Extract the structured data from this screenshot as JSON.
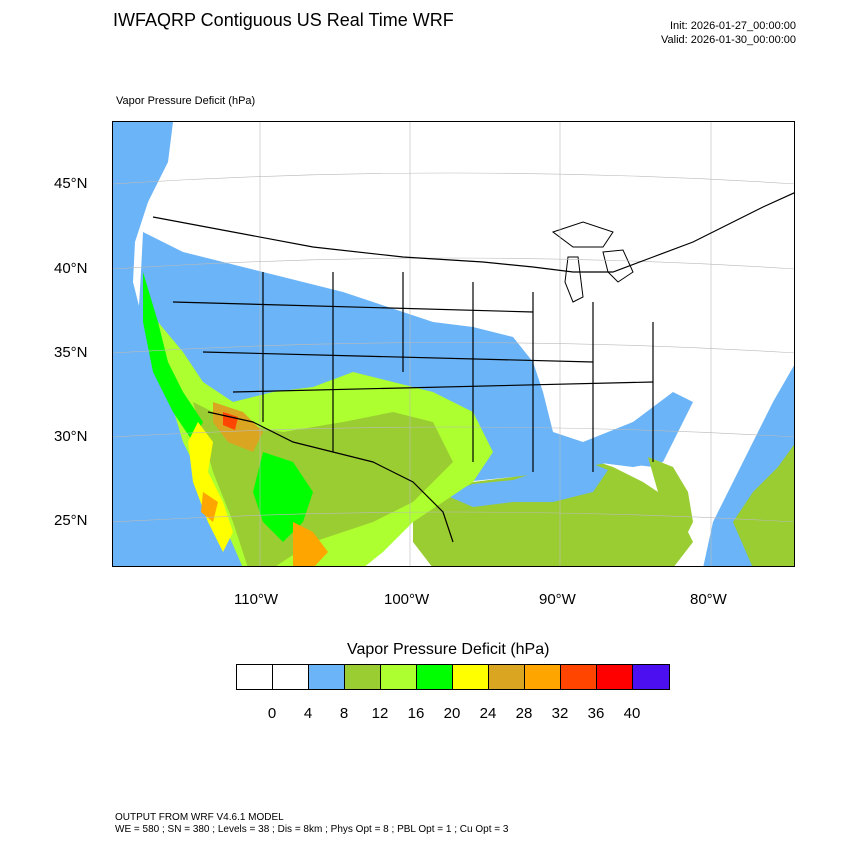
{
  "header": {
    "title": "IWFAQRP Contiguous US Real Time WRF",
    "init": "Init: 2026-01-27_00:00:00",
    "valid": "Valid: 2026-01-30_00:00:00"
  },
  "field_label": "Vapor Pressure Deficit   (hPa)",
  "map": {
    "lat_labels": [
      "45°N",
      "40°N",
      "35°N",
      "30°N",
      "25°N"
    ],
    "lon_labels": [
      "110°W",
      "100°W",
      "90°W",
      "80°W"
    ],
    "ocean_color": "#6ab4f7",
    "land_outline_color": "#000000"
  },
  "colorbar": {
    "title": "Vapor Pressure Deficit  (hPa)",
    "labels": [
      "0",
      "4",
      "8",
      "12",
      "16",
      "20",
      "24",
      "28",
      "32",
      "36",
      "40"
    ],
    "colors": [
      "#ffffff",
      "#ffffff",
      "#6ab4f7",
      "#9acd32",
      "#adff2f",
      "#00ff00",
      "#ffff00",
      "#daa520",
      "#ffa500",
      "#ff4500",
      "#ff0000",
      "#4b0ff0"
    ]
  },
  "footer": {
    "line1": "OUTPUT FROM WRF V4.6.1 MODEL",
    "line2": "WE = 580 ; SN = 380 ; Levels = 38 ; Dis = 8km ; Phys Opt = 8 ; PBL Opt = 1 ; Cu Opt = 3"
  }
}
